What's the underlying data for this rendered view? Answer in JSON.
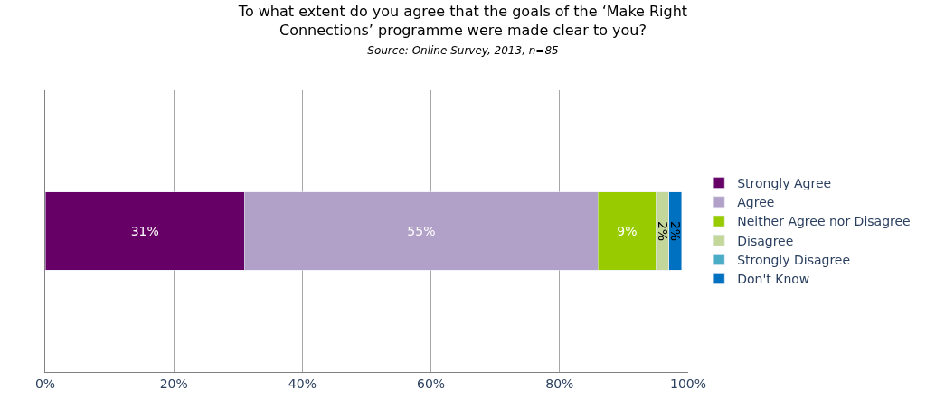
{
  "chart_data": {
    "type": "bar",
    "orientation": "horizontal",
    "stacked": true,
    "title": "To what extent do you agree that the goals of the ‘Make Right Connections’ programme were made clear to you?",
    "subtitle": "Source: Online Survey, 2013, n=85",
    "categories": [
      null
    ],
    "series": [
      {
        "name": "Strongly Agree",
        "color": "#660066",
        "values": [
          31
        ],
        "value_labels": [
          "31%"
        ]
      },
      {
        "name": "Agree",
        "color": "#b1a0c7",
        "values": [
          55
        ],
        "value_labels": [
          "55%"
        ]
      },
      {
        "name": "Neither Agree nor Disagree",
        "color": "#99cc00",
        "values": [
          9
        ],
        "value_labels": [
          "9%"
        ]
      },
      {
        "name": "Disagree",
        "color": "#c4d79b",
        "values": [
          2
        ],
        "value_labels": [
          "2%"
        ]
      },
      {
        "name": "Strongly Disagree",
        "color": "#4bacc6",
        "values": [
          0
        ],
        "value_labels": [
          null
        ]
      },
      {
        "name": "Don't Know",
        "color": "#0070c0",
        "values": [
          2
        ],
        "value_labels": [
          "2%"
        ]
      }
    ],
    "xlim": [
      0,
      100
    ],
    "xticks": [
      {
        "value": 0,
        "label": "0%"
      },
      {
        "value": 20,
        "label": "20%"
      },
      {
        "value": 40,
        "label": "40%"
      },
      {
        "value": 60,
        "label": "60%"
      },
      {
        "value": 80,
        "label": "80%"
      },
      {
        "value": 100,
        "label": "100%"
      }
    ],
    "grid": "x",
    "legend": "right"
  }
}
